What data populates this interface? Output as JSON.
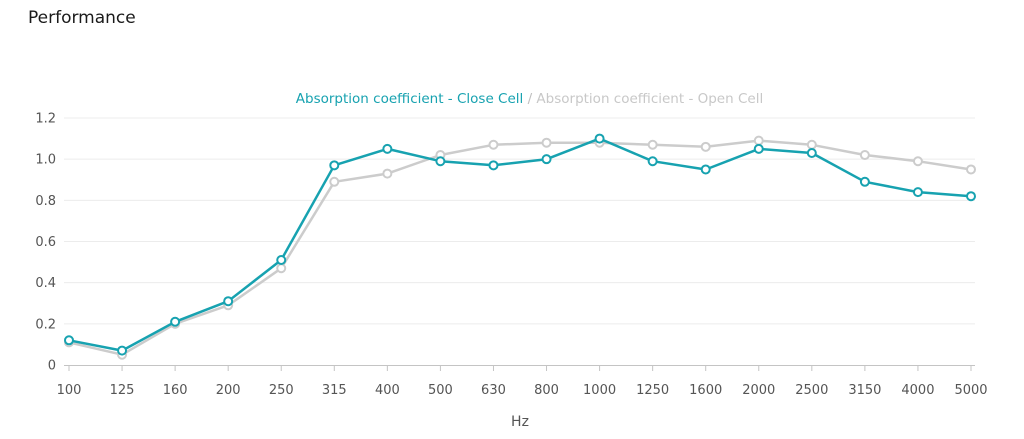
{
  "page": {
    "title": "Performance"
  },
  "chart_data": {
    "type": "line",
    "categories": [
      "100",
      "125",
      "160",
      "200",
      "250",
      "315",
      "400",
      "500",
      "630",
      "800",
      "1000",
      "1250",
      "1600",
      "2000",
      "2500",
      "3150",
      "4000",
      "5000"
    ],
    "series": [
      {
        "name": "Absorption coefficient - Open Cell",
        "color": "#cccccc",
        "values": [
          0.11,
          0.05,
          0.2,
          0.29,
          0.47,
          0.89,
          0.93,
          1.02,
          1.07,
          1.08,
          1.08,
          1.07,
          1.06,
          1.09,
          1.07,
          1.02,
          0.99,
          0.95
        ]
      },
      {
        "name": "Absorption coefficient - Close Cell",
        "color": "#17a2b0",
        "values": [
          0.12,
          0.07,
          0.21,
          0.31,
          0.51,
          0.97,
          1.05,
          0.99,
          0.97,
          1.0,
          1.1,
          0.99,
          0.95,
          1.05,
          1.03,
          0.89,
          0.84,
          0.82
        ]
      }
    ],
    "legend": {
      "first": "Absorption coefficient - Close Cell",
      "separator": " / ",
      "second": "Absorption coefficient - Open Cell",
      "placement": "top-center"
    },
    "xlabel": "Hz",
    "ylabel": "",
    "ylim": [
      0,
      1.2
    ],
    "yticks": [
      "0",
      "0.2",
      "0.4",
      "0.6",
      "0.8",
      "1.0",
      "1.2"
    ],
    "grid": true
  }
}
